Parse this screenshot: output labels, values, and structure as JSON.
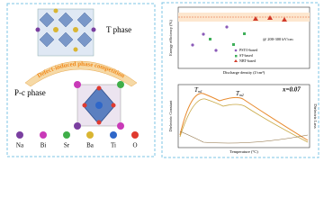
{
  "left_panel": {
    "top_label": "T phase",
    "arc_label": "Defect-induced phase competition",
    "bottom_label": "P-c phase",
    "legend": [
      "Na",
      "Bi",
      "Sr",
      "Ba",
      "Ti",
      "O"
    ]
  },
  "right_panel": {
    "top_plot": {
      "y_label": "Energy efficiency (%)",
      "x_label": "Discharge density (J/cm³)",
      "note": "@ 200-300 kV/cm",
      "legend": [
        "PSTO-based",
        "ST-based",
        "NBT-based"
      ]
    },
    "bottom_plot": {
      "annotation": "x=0.07",
      "peak_1": "T",
      "peak_1_sub": "m1",
      "peak_2": "T",
      "peak_2_sub": "m2",
      "y_label": "Dielectric Constant",
      "y2_label": "Dielectric Loss",
      "x_label": "Temperature (°C)"
    }
  }
}
